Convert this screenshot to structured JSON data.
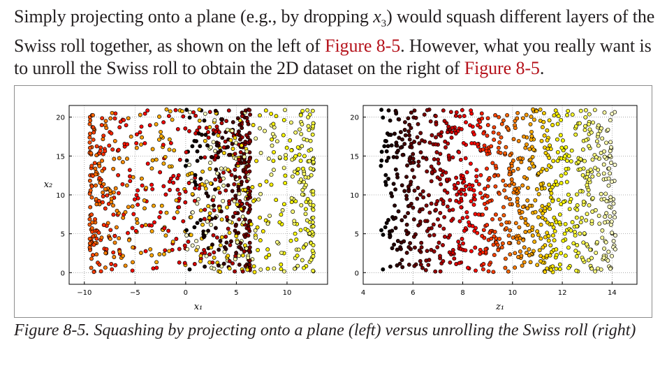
{
  "paragraph": {
    "part1": "Simply projecting onto a plane (e.g., by dropping ",
    "var": "x",
    "sub": "3",
    "part2": ") would squash different layers of the Swiss roll together, as shown on the left of ",
    "ref1": "Figure 8-5",
    "part3": ". However, what you really want is to unroll the Swiss roll to obtain the 2D dataset on the right of ",
    "ref2": "Figure 8-5",
    "part4": "."
  },
  "caption": "Figure 8-5. Squashing by projecting onto a plane (left) versus unrolling the Swiss roll (right)",
  "chart_data": [
    {
      "type": "scatter",
      "xlabel": "x₁",
      "ylabel": "x₂",
      "xlim": [
        -11.5,
        14
      ],
      "ylim": [
        -1.5,
        21.5
      ],
      "xticks": [
        -10,
        -5,
        0,
        5,
        10
      ],
      "yticks": [
        0,
        5,
        10,
        15,
        20
      ],
      "grid": true,
      "colormap": "hot",
      "n_points": 1000,
      "point_color_encodes": "position along roll (t)",
      "x_from_roll": "t·cos(t)",
      "y_range": [
        0,
        21
      ],
      "t_range": [
        4.71,
        14.14
      ]
    },
    {
      "type": "scatter",
      "xlabel": "z₁",
      "ylabel": "",
      "xlim": [
        4,
        15
      ],
      "ylim": [
        -1.5,
        21.5
      ],
      "xticks": [
        4,
        6,
        8,
        10,
        12,
        14
      ],
      "yticks": [
        0,
        5,
        10,
        15,
        20
      ],
      "grid": true,
      "colormap": "hot",
      "n_points": 1000,
      "point_color_encodes": "position along roll (t)",
      "x_from_roll": "t",
      "y_range": [
        0,
        21
      ],
      "t_range": [
        4.71,
        14.14
      ]
    }
  ],
  "colors": {
    "ref_link": "#b5121b",
    "axis": "#000000",
    "grid": "#999999",
    "frame": "#8c8c8c"
  }
}
